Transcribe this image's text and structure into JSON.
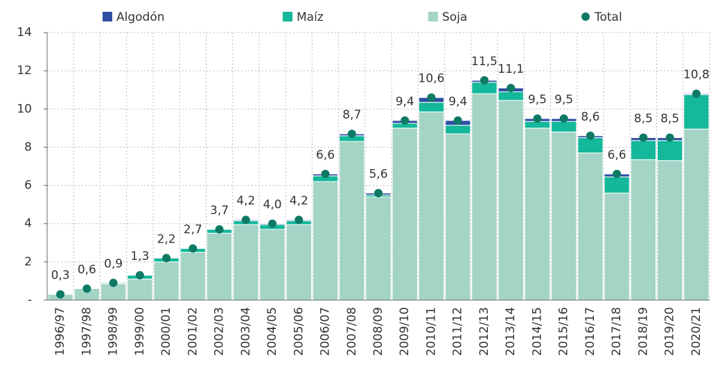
{
  "chart_data": {
    "type": "bar",
    "stacked": true,
    "categories": [
      "1996/97",
      "1997/98",
      "1998/99",
      "1999/00",
      "2000/01",
      "2001/02",
      "2002/03",
      "2003/04",
      "2004/05",
      "2005/06",
      "2006/07",
      "2007/08",
      "2008/09",
      "2009/10",
      "2010/11",
      "2011/12",
      "2012/13",
      "2013/14",
      "2014/15",
      "2015/16",
      "2016/17",
      "2017/18",
      "2018/19",
      "2019/20",
      "2020/21"
    ],
    "series": [
      {
        "name": "Soja",
        "color": "#a3d4c6",
        "values": [
          0.3,
          0.6,
          0.85,
          1.1,
          2.0,
          2.5,
          3.5,
          3.95,
          3.7,
          3.95,
          6.2,
          8.3,
          5.4,
          9.0,
          9.85,
          8.7,
          10.8,
          10.45,
          9.0,
          8.8,
          7.7,
          5.6,
          7.35,
          7.3,
          8.95
        ]
      },
      {
        "name": "Maíz",
        "color": "#14b89a",
        "values": [
          0,
          0,
          0.05,
          0.2,
          0.2,
          0.2,
          0.2,
          0.2,
          0.25,
          0.2,
          0.3,
          0.3,
          0.1,
          0.25,
          0.5,
          0.45,
          0.6,
          0.45,
          0.35,
          0.55,
          0.8,
          0.85,
          1.0,
          1.05,
          1.8
        ]
      },
      {
        "name": "Algodón",
        "color": "#2e4fa3",
        "values": [
          0,
          0,
          0,
          0,
          0,
          0,
          0,
          0.05,
          0.05,
          0.05,
          0.1,
          0.1,
          0.1,
          0.15,
          0.25,
          0.25,
          0.1,
          0.2,
          0.15,
          0.15,
          0.1,
          0.15,
          0.15,
          0.15,
          0.05
        ]
      },
      {
        "name": "Total",
        "color": "#0e7a66",
        "type": "scatter",
        "values": [
          0.3,
          0.6,
          0.9,
          1.3,
          2.2,
          2.7,
          3.7,
          4.2,
          4.0,
          4.2,
          6.6,
          8.7,
          5.6,
          9.4,
          10.6,
          9.4,
          11.5,
          11.1,
          9.5,
          9.5,
          8.6,
          6.6,
          8.5,
          8.5,
          10.8
        ],
        "value_labels": [
          "0,3",
          "0,6",
          "0,9",
          "1,3",
          "2,2",
          "2,7",
          "3,7",
          "4,2",
          "4,0",
          "4,2",
          "6,6",
          "8,7",
          "5,6",
          "9,4",
          "10,6",
          "9,4",
          "11,5",
          "11,1",
          "9,5",
          "9,5",
          "8,6",
          "6,6",
          "8,5",
          "8,5",
          "10,8"
        ]
      }
    ],
    "ylim": [
      0,
      14
    ],
    "yticks": [
      {
        "value": 0,
        "label": "-"
      },
      2,
      4,
      6,
      8,
      10,
      12,
      14
    ],
    "grid": true,
    "legend": "top"
  }
}
